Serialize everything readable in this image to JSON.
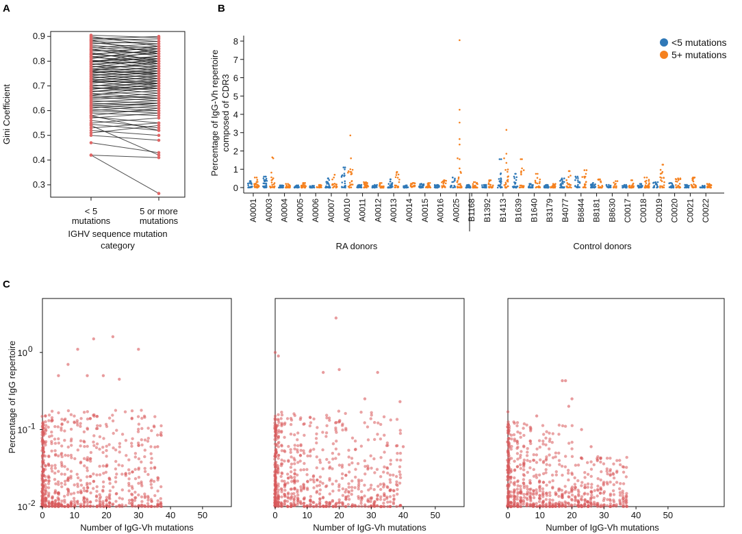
{
  "panels": {
    "a": "A",
    "b": "B",
    "c": "C"
  },
  "colors": {
    "lt5": "#2f78b7",
    "ge5": "#f5811f",
    "point_a": "#e06666",
    "line_a": "#111111",
    "scatter": "#d9595b"
  },
  "chart_data": [
    {
      "id": "A",
      "type": "line",
      "title": "",
      "ylabel": "Gini Coefficient",
      "xlabel": [
        "IGHV sequence mutation",
        "category"
      ],
      "categories": [
        "< 5 mutations",
        "5 or more mutations"
      ],
      "category_lines": [
        [
          "< 5",
          "mutations"
        ],
        [
          "5 or more",
          "mutations"
        ]
      ],
      "ylim": [
        0.25,
        0.92
      ],
      "yticks": [
        "0.3",
        "0.4",
        "0.5",
        "0.6",
        "0.7",
        "0.8",
        "0.9"
      ],
      "pairs": [
        [
          0.905,
          0.895
        ],
        [
          0.9,
          0.86
        ],
        [
          0.895,
          0.88
        ],
        [
          0.89,
          0.9
        ],
        [
          0.885,
          0.83
        ],
        [
          0.88,
          0.87
        ],
        [
          0.875,
          0.85
        ],
        [
          0.87,
          0.88
        ],
        [
          0.865,
          0.84
        ],
        [
          0.86,
          0.82
        ],
        [
          0.855,
          0.87
        ],
        [
          0.85,
          0.8
        ],
        [
          0.848,
          0.86
        ],
        [
          0.845,
          0.83
        ],
        [
          0.84,
          0.85
        ],
        [
          0.835,
          0.79
        ],
        [
          0.83,
          0.84
        ],
        [
          0.828,
          0.81
        ],
        [
          0.825,
          0.86
        ],
        [
          0.82,
          0.78
        ],
        [
          0.818,
          0.83
        ],
        [
          0.815,
          0.8
        ],
        [
          0.81,
          0.85
        ],
        [
          0.805,
          0.77
        ],
        [
          0.8,
          0.82
        ],
        [
          0.798,
          0.79
        ],
        [
          0.795,
          0.84
        ],
        [
          0.79,
          0.76
        ],
        [
          0.788,
          0.8
        ],
        [
          0.785,
          0.82
        ],
        [
          0.78,
          0.75
        ],
        [
          0.778,
          0.78
        ],
        [
          0.775,
          0.81
        ],
        [
          0.77,
          0.74
        ],
        [
          0.768,
          0.79
        ],
        [
          0.765,
          0.77
        ],
        [
          0.76,
          0.8
        ],
        [
          0.758,
          0.73
        ],
        [
          0.755,
          0.76
        ],
        [
          0.75,
          0.78
        ],
        [
          0.748,
          0.72
        ],
        [
          0.745,
          0.75
        ],
        [
          0.74,
          0.77
        ],
        [
          0.738,
          0.71
        ],
        [
          0.735,
          0.74
        ],
        [
          0.73,
          0.76
        ],
        [
          0.728,
          0.7
        ],
        [
          0.725,
          0.73
        ],
        [
          0.72,
          0.75
        ],
        [
          0.718,
          0.69
        ],
        [
          0.715,
          0.72
        ],
        [
          0.71,
          0.74
        ],
        [
          0.705,
          0.68
        ],
        [
          0.7,
          0.71
        ],
        [
          0.698,
          0.73
        ],
        [
          0.695,
          0.67
        ],
        [
          0.69,
          0.7
        ],
        [
          0.685,
          0.72
        ],
        [
          0.68,
          0.66
        ],
        [
          0.678,
          0.69
        ],
        [
          0.675,
          0.71
        ],
        [
          0.67,
          0.65
        ],
        [
          0.665,
          0.68
        ],
        [
          0.66,
          0.7
        ],
        [
          0.655,
          0.64
        ],
        [
          0.65,
          0.67
        ],
        [
          0.645,
          0.66
        ],
        [
          0.64,
          0.63
        ],
        [
          0.635,
          0.65
        ],
        [
          0.63,
          0.62
        ],
        [
          0.625,
          0.64
        ],
        [
          0.62,
          0.61
        ],
        [
          0.615,
          0.6
        ],
        [
          0.61,
          0.63
        ],
        [
          0.605,
          0.59
        ],
        [
          0.6,
          0.62
        ],
        [
          0.595,
          0.6
        ],
        [
          0.59,
          0.58
        ],
        [
          0.58,
          0.61
        ],
        [
          0.575,
          0.55
        ],
        [
          0.57,
          0.59
        ],
        [
          0.56,
          0.53
        ],
        [
          0.55,
          0.57
        ],
        [
          0.545,
          0.52
        ],
        [
          0.53,
          0.55
        ],
        [
          0.52,
          0.5
        ],
        [
          0.51,
          0.54
        ],
        [
          0.5,
          0.48
        ],
        [
          0.47,
          0.43
        ],
        [
          0.42,
          0.41
        ],
        [
          0.885,
          0.89
        ],
        [
          0.8,
          0.81
        ],
        [
          0.76,
          0.75
        ],
        [
          0.72,
          0.71
        ],
        [
          0.69,
          0.69
        ],
        [
          0.66,
          0.65
        ],
        [
          0.62,
          0.63
        ],
        [
          0.58,
          0.52
        ],
        [
          0.54,
          0.42
        ],
        [
          0.42,
          0.265
        ]
      ]
    },
    {
      "id": "B",
      "type": "scatter",
      "ylabel": [
        "Percentage of IgG-Vh repertoire",
        "composed of CDR3"
      ],
      "ylim": [
        -0.3,
        8.3
      ],
      "yticks": [
        "0",
        "1",
        "2",
        "3",
        "4",
        "5",
        "6",
        "7",
        "8"
      ],
      "legend": [
        "<5 mutations",
        "5+ mutations"
      ],
      "groups": [
        {
          "label": "RA donors",
          "donors": [
            "A0001",
            "A0003",
            "A0004",
            "A0005",
            "A0006",
            "A0007",
            "A0010",
            "A0011",
            "A0012",
            "A0013",
            "A0014",
            "A0015",
            "A0016",
            "A0025"
          ]
        },
        {
          "label": "Control donors",
          "donors": [
            "B1168",
            "B1392",
            "B1413",
            "B1639",
            "B1640",
            "B3179",
            "B4077",
            "B6844",
            "B8181",
            "B8630",
            "C0017",
            "C0018",
            "C0019",
            "C0020",
            "C0021",
            "C0022"
          ]
        }
      ],
      "max_lt5": [
        0.35,
        0.6,
        0.12,
        0.12,
        0.1,
        0.5,
        1.1,
        0.15,
        0.15,
        0.45,
        0.12,
        0.2,
        0.15,
        0.55,
        0.15,
        0.15,
        1.55,
        0.75,
        0.2,
        0.15,
        0.5,
        0.6,
        0.25,
        0.15,
        0.15,
        0.2,
        0.3,
        0.25,
        0.15,
        0.1
      ],
      "max_ge5": [
        0.55,
        1.65,
        0.2,
        0.25,
        0.15,
        0.7,
        2.85,
        0.3,
        0.25,
        0.85,
        0.25,
        0.25,
        0.4,
        8.05,
        0.3,
        0.4,
        3.15,
        1.55,
        0.75,
        0.2,
        0.9,
        0.95,
        0.45,
        0.35,
        0.4,
        0.55,
        1.25,
        0.5,
        0.55,
        0.2
      ],
      "outliers_ge5": [
        [
          13,
          4.25
        ],
        [
          13,
          3.55
        ],
        [
          13,
          2.65
        ],
        [
          13,
          2.35
        ],
        [
          13,
          1.55
        ],
        [
          13,
          1.05
        ],
        [
          6,
          1.0
        ],
        [
          6,
          0.85
        ],
        [
          16,
          1.85
        ],
        [
          16,
          1.35
        ],
        [
          17,
          1.05
        ],
        [
          26,
          0.85
        ]
      ]
    },
    {
      "id": "C1",
      "type": "scatter",
      "xlabel": "Number of IgG-Vh mutations",
      "ylabel": "Percentage of IgG repertoire",
      "xlim": [
        0,
        59
      ],
      "ylim_log10": [
        -2,
        0.7
      ],
      "xticks": [
        "0",
        "10",
        "20",
        "30",
        "40",
        "50"
      ],
      "yticks_base": "10",
      "yticks_exp": [
        "-2",
        "-1",
        "0"
      ],
      "max_x": 38,
      "highlights": [
        [
          16,
          1.5
        ],
        [
          22,
          1.6
        ],
        [
          30,
          1.1
        ],
        [
          11,
          1.1
        ],
        [
          8,
          0.7
        ],
        [
          14,
          0.5
        ],
        [
          19,
          0.5
        ],
        [
          5,
          0.5
        ],
        [
          24,
          0.45
        ],
        [
          36,
          0.06
        ]
      ]
    },
    {
      "id": "C2",
      "type": "scatter",
      "xlabel": "Number of IgG-Vh mutations",
      "xlim": [
        0,
        59
      ],
      "ylim_log10": [
        -2,
        0.7
      ],
      "xticks": [
        "0",
        "10",
        "20",
        "30",
        "40",
        "50"
      ],
      "max_x": 40,
      "highlights": [
        [
          19,
          2.8
        ],
        [
          0,
          1.0
        ],
        [
          1,
          0.9
        ],
        [
          20,
          0.6
        ],
        [
          15,
          0.55
        ],
        [
          32,
          0.55
        ],
        [
          39,
          0.23
        ],
        [
          28,
          0.25
        ],
        [
          40,
          0.06
        ]
      ]
    },
    {
      "id": "C3",
      "type": "scatter",
      "xlabel": "Number of IgG-Vh mutations",
      "xlim": [
        0,
        59
      ],
      "ylim_log10": [
        -2,
        0.7
      ],
      "xticks": [
        "0",
        "10",
        "20",
        "30",
        "40",
        "50"
      ],
      "max_x": 38,
      "highlights": [
        [
          17,
          0.43
        ],
        [
          18,
          0.43
        ],
        [
          20,
          0.25
        ],
        [
          19,
          0.2
        ],
        [
          0,
          0.17
        ],
        [
          9,
          0.15
        ],
        [
          23,
          0.1
        ],
        [
          26,
          0.06
        ]
      ]
    }
  ]
}
